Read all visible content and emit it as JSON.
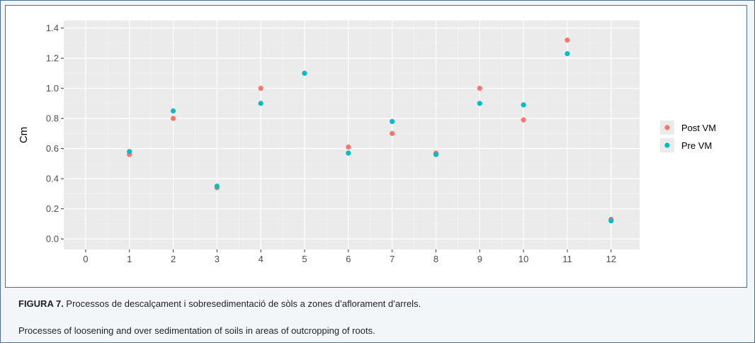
{
  "caption": {
    "figure_label": "FIGURA 7.",
    "text_ca": " Processos de descalçament i sobresedimentació de sòls a zones d’aflorament d’arrels.",
    "text_en": "Processes of loosening and over sedimentation of soils in areas of outcropping of roots."
  },
  "chart_data": {
    "type": "scatter",
    "xlabel": "",
    "ylabel": "Cm",
    "x_ticks": [
      0,
      1,
      2,
      3,
      4,
      5,
      6,
      7,
      8,
      9,
      10,
      11,
      12
    ],
    "y_ticks": [
      "0.0",
      "0.2",
      "0.4",
      "0.6",
      "0.8",
      "1.0",
      "1.2",
      "1.4"
    ],
    "xlim": [
      -0.5,
      12.65
    ],
    "ylim": [
      -0.07,
      1.45
    ],
    "grid": true,
    "legend_position": "right",
    "series": [
      {
        "name": "Post VM",
        "color": "#f8766d",
        "x": [
          1,
          2,
          3,
          4,
          5,
          6,
          7,
          8,
          9,
          10,
          11,
          12
        ],
        "y": [
          0.56,
          0.8,
          0.34,
          1.0,
          1.1,
          0.61,
          0.7,
          0.57,
          1.0,
          0.79,
          1.32,
          0.13
        ]
      },
      {
        "name": "Pre VM",
        "color": "#00bfc4",
        "x": [
          1,
          2,
          3,
          4,
          5,
          6,
          7,
          8,
          9,
          10,
          11,
          12
        ],
        "y": [
          0.58,
          0.85,
          0.35,
          0.9,
          1.1,
          0.57,
          0.78,
          0.56,
          0.9,
          0.89,
          1.23,
          0.12
        ]
      }
    ]
  }
}
